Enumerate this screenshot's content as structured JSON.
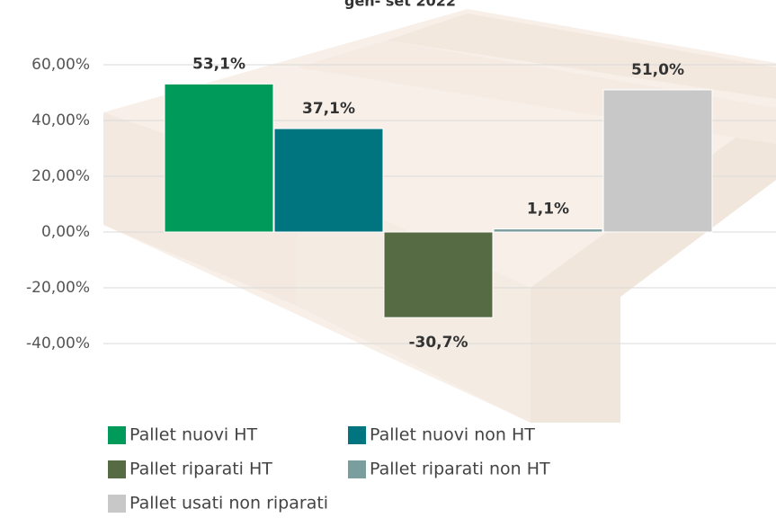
{
  "chart_data": {
    "type": "bar",
    "title": "gen- set 2022",
    "series": [
      {
        "name": "Pallet nuovi HT",
        "color": "#009a5a",
        "values": [
          53.1
        ],
        "value_labels": [
          "53,1%"
        ]
      },
      {
        "name": "Pallet nuovi non HT",
        "color": "#007580",
        "values": [
          37.1
        ],
        "value_labels": [
          "37,1%"
        ]
      },
      {
        "name": "Pallet riparati HT",
        "color": "#566a44",
        "values": [
          -30.7
        ],
        "value_labels": [
          "-30,7%"
        ]
      },
      {
        "name": "Pallet riparati non HT",
        "color": "#7a9e9e",
        "values": [
          1.1
        ],
        "value_labels": [
          "1,1%"
        ]
      },
      {
        "name": "Pallet usati non riparati",
        "color": "#c8c8c8",
        "values": [
          51.0
        ],
        "value_labels": [
          "51,0%"
        ]
      }
    ],
    "ylim": [
      -40,
      60
    ],
    "yticks": [
      {
        "value": 60,
        "label": "60,00%"
      },
      {
        "value": 40,
        "label": "40,00%"
      },
      {
        "value": 20,
        "label": "20,00%"
      },
      {
        "value": 0,
        "label": "0,00%"
      },
      {
        "value": -20,
        "label": "-20,00%"
      },
      {
        "value": -40,
        "label": "-40,00%"
      }
    ],
    "grid": true
  }
}
